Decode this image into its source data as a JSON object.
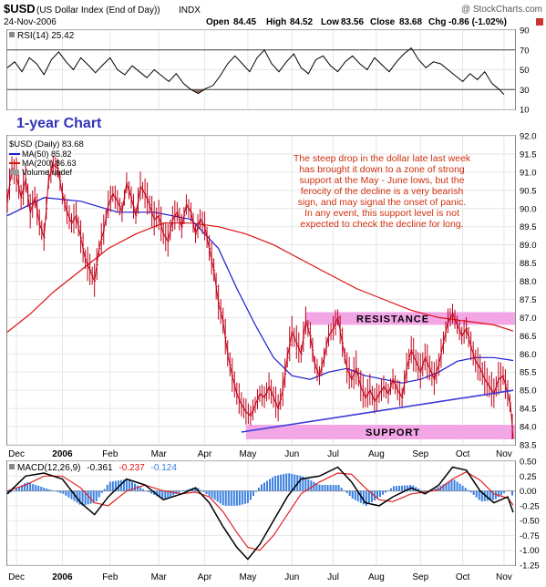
{
  "header": {
    "symbol": "$USD",
    "name": "(US Dollar Index (End of Day))",
    "exchange": "INDX",
    "date": "24-Nov-2006",
    "copyright": "@ StockCharts.com",
    "open_label": "Open",
    "open": "84.45",
    "high_label": "High",
    "high": "84.52",
    "low_label": "Low",
    "low": "83.56",
    "close_label": "Close",
    "close": "83.68",
    "chg_label": "Chg",
    "chg": "-0.86 (-1.02%)"
  },
  "colors": {
    "price": "#c00018",
    "ma50": "#1a1ad0",
    "ma200": "#dd1111",
    "macd": "#000000",
    "signal": "#e02020",
    "hist": "#3a7fe0",
    "band": "#f2a6e6",
    "support_line": "#3a3ad8",
    "annotation": "#d03010",
    "title_blue": "#3333bb"
  },
  "chart_data": [
    {
      "type": "line",
      "panel": "rsi",
      "label": "RSI(14) 25.42",
      "y_ticks": [
        10,
        30,
        50,
        70,
        90
      ],
      "ylim": [
        10,
        90
      ],
      "reference_lines": [
        30,
        70
      ],
      "months": [
        "Dec",
        "2006",
        "Feb",
        "Mar",
        "Apr",
        "May",
        "Jun",
        "Jul",
        "Aug",
        "Sep",
        "Oct",
        "Nov"
      ],
      "rsi": [
        [
          0,
          52
        ],
        [
          8,
          58
        ],
        [
          16,
          48
        ],
        [
          24,
          62
        ],
        [
          32,
          56
        ],
        [
          40,
          45
        ],
        [
          48,
          60
        ],
        [
          56,
          68
        ],
        [
          64,
          58
        ],
        [
          72,
          50
        ],
        [
          80,
          62
        ],
        [
          88,
          55
        ],
        [
          96,
          47
        ],
        [
          104,
          55
        ],
        [
          112,
          62
        ],
        [
          120,
          50
        ],
        [
          128,
          45
        ],
        [
          136,
          54
        ],
        [
          144,
          48
        ],
        [
          152,
          42
        ],
        [
          160,
          50
        ],
        [
          168,
          44
        ],
        [
          176,
          38
        ],
        [
          184,
          46
        ],
        [
          192,
          36
        ],
        [
          200,
          30
        ],
        [
          208,
          26
        ],
        [
          216,
          31
        ],
        [
          224,
          34
        ],
        [
          232,
          44
        ],
        [
          240,
          56
        ],
        [
          248,
          64
        ],
        [
          256,
          56
        ],
        [
          264,
          48
        ],
        [
          272,
          62
        ],
        [
          280,
          70
        ],
        [
          288,
          56
        ],
        [
          296,
          48
        ],
        [
          304,
          58
        ],
        [
          312,
          66
        ],
        [
          320,
          52
        ],
        [
          328,
          46
        ],
        [
          336,
          60
        ],
        [
          344,
          64
        ],
        [
          352,
          54
        ],
        [
          360,
          48
        ],
        [
          368,
          58
        ],
        [
          376,
          64
        ],
        [
          384,
          56
        ],
        [
          392,
          50
        ],
        [
          400,
          62
        ],
        [
          408,
          55
        ],
        [
          416,
          48
        ],
        [
          424,
          58
        ],
        [
          432,
          66
        ],
        [
          440,
          72
        ],
        [
          448,
          60
        ],
        [
          456,
          52
        ],
        [
          464,
          58
        ],
        [
          472,
          56
        ],
        [
          480,
          50
        ],
        [
          488,
          44
        ],
        [
          496,
          38
        ],
        [
          504,
          46
        ],
        [
          512,
          40
        ],
        [
          520,
          48
        ],
        [
          528,
          36
        ],
        [
          536,
          30
        ],
        [
          541,
          25
        ]
      ]
    },
    {
      "type": "line",
      "panel": "price",
      "legend": [
        "$USD (Daily) 83.68",
        "MA(50) 85.82",
        "MA(200) 86.63",
        "Volume undef"
      ],
      "watermark": "1-year Chart",
      "y_ticks": [
        83.5,
        84.0,
        84.5,
        85.0,
        85.5,
        86.0,
        86.5,
        87.0,
        87.5,
        88.0,
        88.5,
        89.0,
        89.5,
        90.0,
        90.5,
        91.0,
        91.5,
        92.0
      ],
      "ylim": [
        83.5,
        92.0
      ],
      "months": [
        "Dec",
        "2006",
        "Feb",
        "Mar",
        "Apr",
        "May",
        "Jun",
        "Jul",
        "Aug",
        "Sep",
        "Oct",
        "Nov"
      ],
      "close": [
        [
          0,
          90.2
        ],
        [
          5,
          91.1
        ],
        [
          10,
          90.9
        ],
        [
          15,
          90.3
        ],
        [
          20,
          90.8
        ],
        [
          25,
          89.9
        ],
        [
          30,
          90.3
        ],
        [
          35,
          89.6
        ],
        [
          40,
          89.2
        ],
        [
          45,
          90.8
        ],
        [
          50,
          91.2
        ],
        [
          55,
          91.1
        ],
        [
          60,
          90.4
        ],
        [
          65,
          89.9
        ],
        [
          70,
          89.6
        ],
        [
          75,
          89.8
        ],
        [
          80,
          89.2
        ],
        [
          85,
          88.6
        ],
        [
          90,
          88.3
        ],
        [
          95,
          88.0
        ],
        [
          100,
          88.9
        ],
        [
          105,
          89.4
        ],
        [
          110,
          90.1
        ],
        [
          115,
          90.4
        ],
        [
          120,
          90.2
        ],
        [
          125,
          89.9
        ],
        [
          130,
          90.7
        ],
        [
          135,
          90.3
        ],
        [
          140,
          89.8
        ],
        [
          145,
          90.6
        ],
        [
          150,
          90.4
        ],
        [
          155,
          90.1
        ],
        [
          160,
          89.7
        ],
        [
          165,
          89.8
        ],
        [
          170,
          89.3
        ],
        [
          175,
          89.1
        ],
        [
          180,
          89.7
        ],
        [
          185,
          89.9
        ],
        [
          190,
          89.5
        ],
        [
          195,
          90.1
        ],
        [
          200,
          89.9
        ],
        [
          205,
          89.3
        ],
        [
          210,
          89.7
        ],
        [
          215,
          89.5
        ],
        [
          220,
          88.9
        ],
        [
          225,
          88.3
        ],
        [
          230,
          87.4
        ],
        [
          235,
          86.9
        ],
        [
          240,
          86.0
        ],
        [
          245,
          85.4
        ],
        [
          250,
          84.9
        ],
        [
          255,
          84.6
        ],
        [
          260,
          84.4
        ],
        [
          265,
          84.3
        ],
        [
          270,
          84.6
        ],
        [
          275,
          84.9
        ],
        [
          280,
          84.8
        ],
        [
          285,
          85.1
        ],
        [
          290,
          84.8
        ],
        [
          295,
          84.5
        ],
        [
          300,
          85.0
        ],
        [
          305,
          85.9
        ],
        [
          310,
          86.6
        ],
        [
          315,
          86.3
        ],
        [
          320,
          86.0
        ],
        [
          325,
          86.9
        ],
        [
          330,
          86.5
        ],
        [
          335,
          85.7
        ],
        [
          340,
          85.4
        ],
        [
          345,
          85.9
        ],
        [
          350,
          86.5
        ],
        [
          355,
          86.7
        ],
        [
          360,
          87.0
        ],
        [
          365,
          86.3
        ],
        [
          370,
          85.6
        ],
        [
          375,
          85.3
        ],
        [
          380,
          85.6
        ],
        [
          385,
          85.1
        ],
        [
          390,
          84.8
        ],
        [
          395,
          85.0
        ],
        [
          400,
          84.7
        ],
        [
          405,
          84.9
        ],
        [
          410,
          85.1
        ],
        [
          415,
          84.9
        ],
        [
          420,
          85.3
        ],
        [
          425,
          85.0
        ],
        [
          430,
          84.8
        ],
        [
          435,
          85.6
        ],
        [
          440,
          86.1
        ],
        [
          445,
          85.8
        ],
        [
          450,
          85.5
        ],
        [
          455,
          85.9
        ],
        [
          460,
          85.6
        ],
        [
          465,
          85.3
        ],
        [
          470,
          85.7
        ],
        [
          475,
          86.3
        ],
        [
          480,
          86.9
        ],
        [
          485,
          87.1
        ],
        [
          490,
          86.8
        ],
        [
          495,
          86.5
        ],
        [
          500,
          86.7
        ],
        [
          505,
          86.2
        ],
        [
          510,
          85.8
        ],
        [
          515,
          85.6
        ],
        [
          520,
          85.3
        ],
        [
          525,
          85.1
        ],
        [
          530,
          84.9
        ],
        [
          535,
          85.3
        ],
        [
          540,
          85.4
        ],
        [
          545,
          84.9
        ],
        [
          548,
          84.6
        ],
        [
          551,
          83.68
        ]
      ],
      "ma50": [
        [
          0,
          89.8
        ],
        [
          40,
          90.3
        ],
        [
          80,
          90.2
        ],
        [
          120,
          89.9
        ],
        [
          160,
          89.9
        ],
        [
          200,
          89.7
        ],
        [
          230,
          88.9
        ],
        [
          250,
          87.8
        ],
        [
          270,
          86.8
        ],
        [
          290,
          85.9
        ],
        [
          310,
          85.4
        ],
        [
          330,
          85.3
        ],
        [
          350,
          85.5
        ],
        [
          370,
          85.6
        ],
        [
          390,
          85.4
        ],
        [
          410,
          85.3
        ],
        [
          430,
          85.2
        ],
        [
          450,
          85.3
        ],
        [
          470,
          85.5
        ],
        [
          490,
          85.8
        ],
        [
          510,
          85.9
        ],
        [
          530,
          85.9
        ],
        [
          551,
          85.82
        ]
      ],
      "ma200": [
        [
          0,
          86.6
        ],
        [
          25,
          87.1
        ],
        [
          50,
          87.7
        ],
        [
          80,
          88.3
        ],
        [
          110,
          88.9
        ],
        [
          140,
          89.3
        ],
        [
          170,
          89.6
        ],
        [
          200,
          89.6
        ],
        [
          230,
          89.5
        ],
        [
          260,
          89.3
        ],
        [
          290,
          89.0
        ],
        [
          320,
          88.6
        ],
        [
          350,
          88.2
        ],
        [
          380,
          87.8
        ],
        [
          410,
          87.5
        ],
        [
          440,
          87.2
        ],
        [
          470,
          87.0
        ],
        [
          500,
          86.9
        ],
        [
          530,
          86.8
        ],
        [
          551,
          86.63
        ]
      ],
      "annotation": [
        "The steep drop in the dollar late last week",
        "has brought it down to a zone of strong",
        "support at the May - June lows, but the",
        "ferocity of the decline is a very bearish",
        "sign, and may signal the onset of panic.",
        "In any event, this support level is not",
        "expected to check the decline for long."
      ],
      "resistance": {
        "label": "RESISTANCE",
        "low": 86.8,
        "high": 87.15
      },
      "support": {
        "label": "SUPPORT",
        "low": 83.65,
        "high": 84.05
      },
      "support_trendline": [
        [
          255,
          83.85
        ],
        [
          551,
          85.0
        ]
      ]
    },
    {
      "type": "line",
      "panel": "macd",
      "label_prefix": "MACD(12,26,9)",
      "label_values": [
        "-0.361",
        "-0.237",
        "-0.124"
      ],
      "y_ticks": [
        0.5,
        0.25,
        0.0,
        -0.25,
        -0.5,
        -0.75,
        -1.0,
        -1.25
      ],
      "ylim": [
        -1.25,
        0.5
      ],
      "months": [
        "Dec",
        "2006",
        "Feb",
        "Mar",
        "Apr",
        "May",
        "Jun",
        "Jul",
        "Aug",
        "Sep",
        "Oct",
        "Nov"
      ],
      "macd": [
        [
          0,
          -0.05
        ],
        [
          20,
          0.25
        ],
        [
          40,
          0.3
        ],
        [
          60,
          0.2
        ],
        [
          80,
          -0.2
        ],
        [
          95,
          -0.4
        ],
        [
          110,
          -0.1
        ],
        [
          130,
          0.2
        ],
        [
          150,
          0.1
        ],
        [
          170,
          -0.15
        ],
        [
          190,
          -0.05
        ],
        [
          205,
          0.05
        ],
        [
          220,
          -0.2
        ],
        [
          235,
          -0.6
        ],
        [
          250,
          -0.95
        ],
        [
          262,
          -1.15
        ],
        [
          275,
          -0.9
        ],
        [
          290,
          -0.5
        ],
        [
          305,
          -0.1
        ],
        [
          320,
          0.2
        ],
        [
          340,
          0.25
        ],
        [
          360,
          0.4
        ],
        [
          375,
          0.15
        ],
        [
          390,
          -0.2
        ],
        [
          405,
          -0.25
        ],
        [
          420,
          -0.1
        ],
        [
          440,
          0.05
        ],
        [
          455,
          -0.05
        ],
        [
          470,
          0.1
        ],
        [
          485,
          0.4
        ],
        [
          500,
          0.35
        ],
        [
          515,
          0.0
        ],
        [
          530,
          -0.2
        ],
        [
          545,
          -0.1
        ],
        [
          551,
          -0.361
        ]
      ],
      "signal": [
        [
          0,
          0.0
        ],
        [
          20,
          0.1
        ],
        [
          40,
          0.25
        ],
        [
          60,
          0.25
        ],
        [
          80,
          0.05
        ],
        [
          95,
          -0.2
        ],
        [
          110,
          -0.25
        ],
        [
          130,
          0.0
        ],
        [
          150,
          0.1
        ],
        [
          170,
          0.0
        ],
        [
          190,
          -0.05
        ],
        [
          205,
          -0.02
        ],
        [
          220,
          -0.1
        ],
        [
          235,
          -0.35
        ],
        [
          250,
          -0.7
        ],
        [
          262,
          -0.95
        ],
        [
          275,
          -1.0
        ],
        [
          290,
          -0.75
        ],
        [
          305,
          -0.4
        ],
        [
          320,
          -0.05
        ],
        [
          340,
          0.15
        ],
        [
          360,
          0.3
        ],
        [
          375,
          0.28
        ],
        [
          390,
          0.05
        ],
        [
          405,
          -0.15
        ],
        [
          420,
          -0.18
        ],
        [
          440,
          -0.05
        ],
        [
          455,
          -0.02
        ],
        [
          470,
          0.02
        ],
        [
          485,
          0.2
        ],
        [
          500,
          0.32
        ],
        [
          515,
          0.18
        ],
        [
          530,
          -0.05
        ],
        [
          545,
          -0.12
        ],
        [
          551,
          -0.237
        ]
      ]
    }
  ]
}
